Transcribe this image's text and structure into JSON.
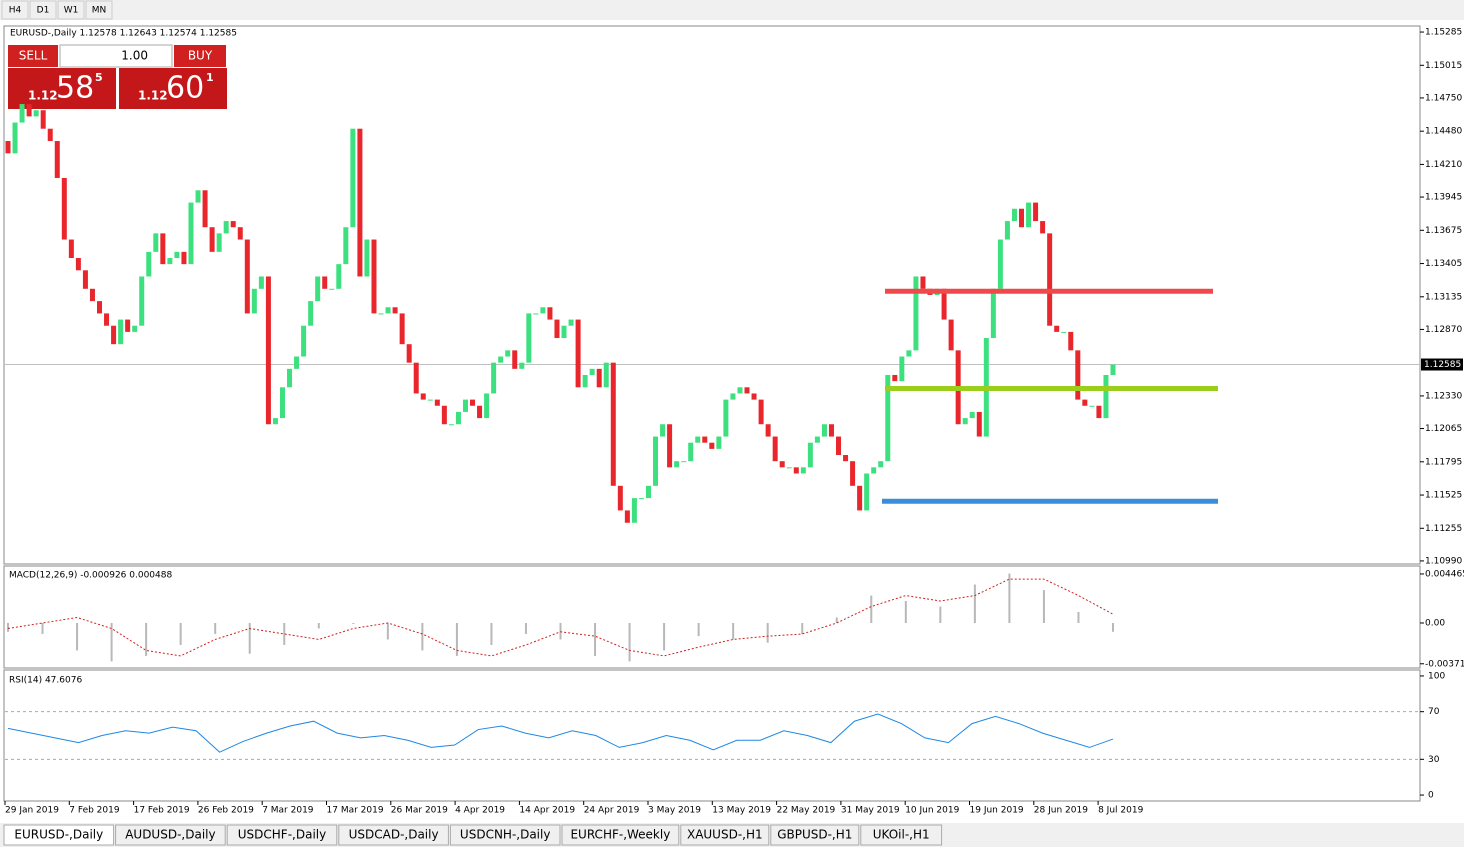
{
  "toolbar": [
    "H4",
    "D1",
    "W1",
    "MN"
  ],
  "trade_panel": {
    "sell": "SELL",
    "buy": "BUY",
    "volume": "1.00",
    "bid_big": "1.12",
    "bid_pips": "58",
    "bid_frac": "5",
    "ask_big": "1.12",
    "ask_pips": "60",
    "ask_frac": "1"
  },
  "chart_data": {
    "type": "candlestick",
    "header": "EURUSD-,Daily  1.12578 1.12643 1.12574 1.12585",
    "up_color": "#3ce07e",
    "down_color": "#e8262b",
    "first_open": 1.144,
    "close": [
      1.143,
      1.1455,
      1.147,
      1.146,
      1.1465,
      1.145,
      1.144,
      1.141,
      1.136,
      1.1345,
      1.1335,
      1.132,
      1.131,
      1.13,
      1.129,
      1.1275,
      1.1295,
      1.1285,
      1.129,
      1.133,
      1.135,
      1.1365,
      1.134,
      1.1345,
      1.135,
      1.134,
      1.139,
      1.14,
      1.137,
      1.135,
      1.1365,
      1.1375,
      1.137,
      1.136,
      1.13,
      1.132,
      1.133,
      1.121,
      1.1215,
      1.124,
      1.1255,
      1.1265,
      1.129,
      1.131,
      1.133,
      1.132,
      1.132,
      1.134,
      1.137,
      1.145,
      1.133,
      1.136,
      1.13,
      1.13,
      1.1305,
      1.13,
      1.1275,
      1.126,
      1.1235,
      1.123,
      1.123,
      1.1225,
      1.121,
      1.121,
      1.122,
      1.123,
      1.1225,
      1.1215,
      1.1235,
      1.126,
      1.1265,
      1.127,
      1.1255,
      1.126,
      1.13,
      1.13,
      1.1305,
      1.1295,
      1.128,
      1.129,
      1.1295,
      1.124,
      1.125,
      1.1255,
      1.124,
      1.126,
      1.116,
      1.114,
      1.113,
      1.115,
      1.115,
      1.116,
      1.12,
      1.121,
      1.1175,
      1.118,
      1.118,
      1.1195,
      1.12,
      1.1195,
      1.119,
      1.12,
      1.123,
      1.1235,
      1.124,
      1.1235,
      1.123,
      1.121,
      1.12,
      1.118,
      1.1175,
      1.1175,
      1.117,
      1.1175,
      1.1195,
      1.12,
      1.121,
      1.12,
      1.1185,
      1.118,
      1.116,
      1.114,
      1.117,
      1.1175,
      1.118,
      1.125,
      1.1245,
      1.1265,
      1.127,
      1.133,
      1.132,
      1.1315,
      1.132,
      1.1295,
      1.127,
      1.121,
      1.1215,
      1.122,
      1.12,
      1.128,
      1.132,
      1.136,
      1.1375,
      1.1385,
      1.137,
      1.139,
      1.1375,
      1.1365,
      1.129,
      1.1285,
      1.1285,
      1.127,
      1.123,
      1.1225,
      1.1225,
      1.1215,
      1.125,
      1.12585
    ],
    "ylim": [
      1.10965,
      1.15326
    ],
    "yticks": [
      {
        "value": 1.15285,
        "label": "1.15285"
      },
      {
        "value": 1.15015,
        "label": "1.15015"
      },
      {
        "value": 1.1475,
        "label": "1.14750"
      },
      {
        "value": 1.1448,
        "label": "1.14480"
      },
      {
        "value": 1.1421,
        "label": "1.14210"
      },
      {
        "value": 1.13945,
        "label": "1.13945"
      },
      {
        "value": 1.13675,
        "label": "1.13675"
      },
      {
        "value": 1.13405,
        "label": "1.13405"
      },
      {
        "value": 1.13135,
        "label": "1.13135"
      },
      {
        "value": 1.1287,
        "label": "1.12870"
      },
      {
        "value": 1.1233,
        "label": "1.12330"
      },
      {
        "value": 1.12065,
        "label": "1.12065"
      },
      {
        "value": 1.11795,
        "label": "1.11795"
      },
      {
        "value": 1.11525,
        "label": "1.11525"
      },
      {
        "value": 1.11255,
        "label": "1.11255"
      },
      {
        "value": 1.1099,
        "label": "1.10990"
      }
    ],
    "current_price": {
      "value": 1.12585,
      "label": "1.12585"
    },
    "levels": [
      {
        "value": 1.1318,
        "color": "#f0494b"
      },
      {
        "value": 1.1239,
        "color": "#9acd1c"
      },
      {
        "value": 1.11475,
        "color": "#3a8fd8"
      }
    ],
    "categories": [
      "29 Jan 2019",
      "7 Feb 2019",
      "17 Feb 2019",
      "26 Feb 2019",
      "7 Mar 2019",
      "17 Mar 2019",
      "26 Mar 2019",
      "4 Apr 2019",
      "14 Apr 2019",
      "24 Apr 2019",
      "3 May 2019",
      "13 May 2019",
      "22 May 2019",
      "31 May 2019",
      "10 Jun 2019",
      "19 Jun 2019",
      "28 Jun 2019",
      "8 Jul 2019"
    ]
  },
  "macd": {
    "label": "MACD(12,26,9) -0.000926 0.000488",
    "ylim": [
      -0.0041,
      0.00519
    ],
    "yticks": [
      {
        "value": 0.004465,
        "label": "0.004465"
      },
      {
        "value": 0,
        "label": "0.00"
      },
      {
        "value": -0.003715,
        "label": "-0.003715"
      }
    ],
    "histogram": [
      -0.0008,
      -0.001,
      -0.0025,
      -0.0035,
      -0.003,
      -0.002,
      -0.001,
      -0.0028,
      -0.002,
      -0.0005,
      0.0,
      -0.0015,
      -0.0025,
      -0.003,
      -0.002,
      -0.001,
      -0.0015,
      -0.003,
      -0.0035,
      -0.0025,
      -0.0012,
      -0.0015,
      -0.0018,
      -0.001,
      0.0005,
      0.0025,
      0.002,
      0.0015,
      0.0035,
      0.0045,
      0.003,
      0.001,
      -0.0008
    ],
    "signal": [
      -0.0005,
      0.0,
      0.0005,
      -0.0005,
      -0.0025,
      -0.003,
      -0.0015,
      -0.0005,
      -0.001,
      -0.0015,
      -0.0005,
      0.0,
      -0.001,
      -0.0025,
      -0.003,
      -0.002,
      -0.0008,
      -0.0012,
      -0.0025,
      -0.003,
      -0.0022,
      -0.0015,
      -0.0012,
      -0.001,
      0.0,
      0.0015,
      0.0025,
      0.002,
      0.0025,
      0.004,
      0.004,
      0.0025,
      0.0008
    ]
  },
  "rsi": {
    "label": "RSI(14) 47.6076",
    "ylim": [
      -5,
      105
    ],
    "yticks": [
      100,
      70,
      30,
      0
    ],
    "levels": [
      70,
      30
    ],
    "values": [
      56,
      52,
      48,
      44,
      50,
      54,
      52,
      57,
      54,
      36,
      45,
      52,
      58,
      62,
      52,
      48,
      50,
      46,
      40,
      42,
      55,
      58,
      52,
      48,
      54,
      50,
      40,
      44,
      50,
      46,
      38,
      46,
      46,
      54,
      50,
      44,
      62,
      68,
      60,
      48,
      44,
      60,
      66,
      60,
      52,
      46,
      40,
      47
    ]
  },
  "tabs": [
    "EURUSD-,Daily",
    "AUDUSD-,Daily",
    "USDCHF-,Daily",
    "USDCAD-,Daily",
    "USDCNH-,Daily",
    "EURCHF-,Weekly",
    "XAUUSD-,H1",
    "GBPUSD-,H1",
    "UKOil-,H1"
  ]
}
